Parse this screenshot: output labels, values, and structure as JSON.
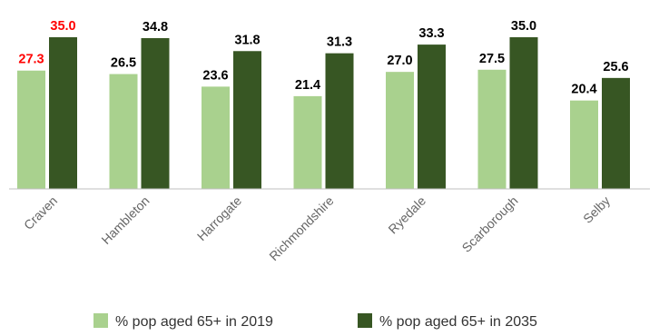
{
  "chart_data": {
    "type": "bar",
    "categories": [
      "Craven",
      "Hambleton",
      "Harrogate",
      "Richmondshire",
      "Ryedale",
      "Scarborough",
      "Selby"
    ],
    "series": [
      {
        "name": "% pop aged 65+ in 2019",
        "color": "#a9d18e",
        "values": [
          27.3,
          26.5,
          23.6,
          21.4,
          27.0,
          27.5,
          20.4
        ],
        "labels": [
          "27.3",
          "26.5",
          "23.6",
          "21.4",
          "27.0",
          "27.5",
          "20.4"
        ]
      },
      {
        "name": "% pop aged 65+ in 2035",
        "color": "#375623",
        "values": [
          35.0,
          34.8,
          31.8,
          31.3,
          33.3,
          35.0,
          25.6
        ],
        "labels": [
          "35.0",
          "34.8",
          "31.8",
          "31.3",
          "33.3",
          "35.0",
          "25.6"
        ]
      }
    ],
    "highlight_category": "Craven",
    "highlight_label_color": "#ff0000",
    "default_label_color": "#000000",
    "axis_color": "#bfbfbf",
    "ylim": [
      0,
      35
    ],
    "grid": false,
    "legend": "bottom"
  }
}
